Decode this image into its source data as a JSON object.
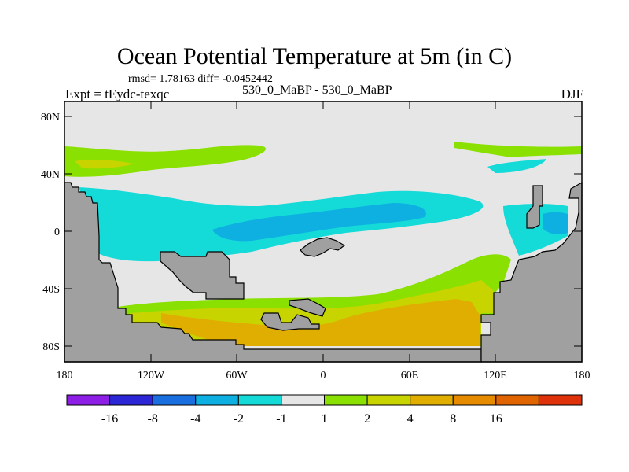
{
  "title": "Ocean Potential Temperature at 5m (in C)",
  "stats": "rmsd= 1.78163 diff= -0.0452442",
  "experiment": "Expt = tEydc-texqc",
  "comparison": "530_0_MaBP - 530_0_MaBP",
  "season": "DJF",
  "axes": {
    "y_labels": [
      "80N",
      "40N",
      "0",
      "40S",
      "80S"
    ],
    "x_labels": [
      "180",
      "120W",
      "60W",
      "0",
      "60E",
      "120E",
      "180"
    ]
  },
  "colorbar": {
    "colors": [
      "#8c1ee6",
      "#2c26d6",
      "#1a6fe0",
      "#0db0e0",
      "#14dad8",
      "#e6e6e6",
      "#8ae000",
      "#c8d400",
      "#e0ae00",
      "#e68a00",
      "#e06400",
      "#e0320a"
    ],
    "labels": [
      "-16",
      "-8",
      "-4",
      "-2",
      "-1",
      "1",
      "2",
      "4",
      "8",
      "16"
    ]
  },
  "legend_colors": {
    "land": "#a0a0a0",
    "near_zero": "#e6e6e6",
    "cool_light": "#14dad8",
    "cool_mid": "#0db0e0",
    "warm_light": "#8ae000",
    "warm_mid": "#c8d400",
    "warm_strong": "#e0ae00"
  }
}
